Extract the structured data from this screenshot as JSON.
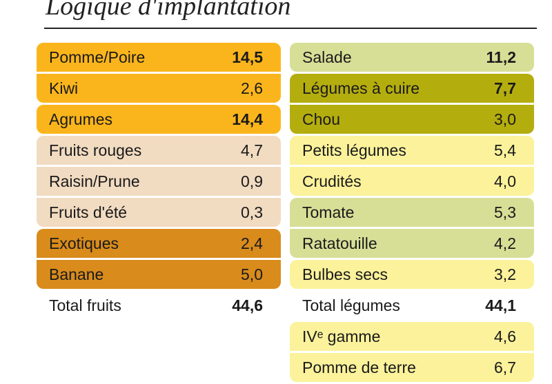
{
  "title": "Logique d'implantation",
  "chart_data": {
    "type": "table",
    "title": "Logique d'implantation",
    "columns": [
      {
        "rows": [
          {
            "label": "Pomme/Poire",
            "value": "14,5",
            "group": 1,
            "color": "#fbb51c",
            "bold": true
          },
          {
            "label": "Kiwi",
            "value": "2,6",
            "group": 1,
            "color": "#fbb51c",
            "bold": false
          },
          {
            "label": "Agrumes",
            "value": "14,4",
            "group": 2,
            "color": "#fbb51c",
            "bold": true
          },
          {
            "label": "Fruits rouges",
            "value": "4,7",
            "group": 3,
            "color": "#f1dbc1",
            "bold": false
          },
          {
            "label": "Raisin/Prune",
            "value": "0,9",
            "group": 3,
            "color": "#f1dbc1",
            "bold": false
          },
          {
            "label": "Fruits d'été",
            "value": "0,3",
            "group": 3,
            "color": "#f1dbc1",
            "bold": false
          },
          {
            "label": "Exotiques",
            "value": "2,4",
            "group": 4,
            "color": "#d98b1c",
            "bold": false
          },
          {
            "label": "Banane",
            "value": "5,0",
            "group": 4,
            "color": "#d98b1c",
            "bold": false
          },
          {
            "label": "Total fruits",
            "value": "44,6",
            "total": true
          }
        ]
      },
      {
        "rows": [
          {
            "label": "Salade",
            "value": "11,2",
            "group": 1,
            "color": "#d7df97",
            "bold": true
          },
          {
            "label": "Légumes à cuire",
            "value": "7,7",
            "group": 2,
            "color": "#b4ad0e",
            "bold": true
          },
          {
            "label": "Chou",
            "value": "3,0",
            "group": 2,
            "color": "#b4ad0e",
            "bold": false
          },
          {
            "label": "Petits légumes",
            "value": "5,4",
            "group": 3,
            "color": "#fbf29b",
            "bold": false
          },
          {
            "label": "Crudités",
            "value": "4,0",
            "group": 3,
            "color": "#fbf29b",
            "bold": false
          },
          {
            "label": "Tomate",
            "value": "5,3",
            "group": 4,
            "color": "#d7df97",
            "bold": false
          },
          {
            "label": "Ratatouille",
            "value": "4,2",
            "group": 4,
            "color": "#d7df97",
            "bold": false
          },
          {
            "label": "Bulbes secs",
            "value": "3,2",
            "group": 5,
            "color": "#fbf29b",
            "bold": false
          },
          {
            "label": "Total légumes",
            "value": "44,1",
            "total": true
          },
          {
            "label": "IVᵉ gamme",
            "value": "4,6",
            "group": 6,
            "color": "#fbf29b",
            "bold": false
          },
          {
            "label": "Pomme de terre",
            "value": "6,7",
            "group": 6,
            "color": "#fbf29b",
            "bold": false
          }
        ]
      }
    ]
  }
}
